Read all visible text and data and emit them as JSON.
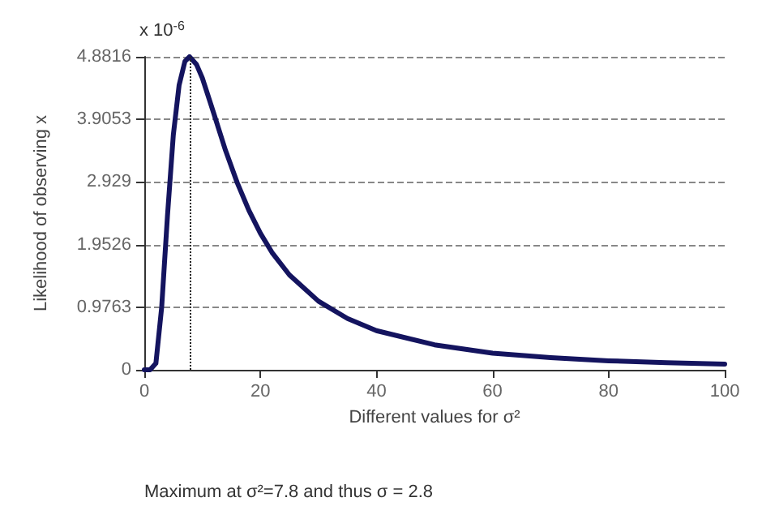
{
  "chart_data": {
    "type": "line",
    "xlabel": "Different values for σ²",
    "ylabel": "Likelihood of observing x",
    "annotations": [
      "x 10$^{-6}$",
      "Maximum at σ²=7.8 and thus σ = 2.8"
    ],
    "series": [
      {
        "color": "#14145f",
        "x": [
          0,
          1,
          2,
          3,
          4,
          5,
          6,
          7,
          7.8,
          9,
          10,
          12,
          14,
          16,
          18,
          20,
          22,
          25,
          30,
          35,
          40,
          50,
          60,
          70,
          80,
          90,
          100
        ],
        "values": [
          0,
          0,
          0.1,
          0.98,
          2.41,
          3.66,
          4.44,
          4.81,
          4.8816,
          4.76,
          4.55,
          3.99,
          3.42,
          2.92,
          2.49,
          2.13,
          1.83,
          1.48,
          1.07,
          0.8,
          0.61,
          0.39,
          0.26,
          0.19,
          0.14,
          0.11,
          0.09
        ]
      }
    ],
    "xlim": [
      0,
      100
    ],
    "xticks": [
      0,
      20,
      40,
      60,
      80,
      100
    ],
    "ylim": [
      0,
      4.8816
    ],
    "yticks": [
      0,
      0.9763,
      1.9526,
      2.929,
      3.9053,
      4.8816
    ],
    "grid": "y",
    "marker": "none",
    "line_style": "solid",
    "ref_lines": [
      {
        "axis": "x",
        "value": 7.8,
        "line_style": "dotted",
        "color": "#222222"
      }
    ]
  }
}
